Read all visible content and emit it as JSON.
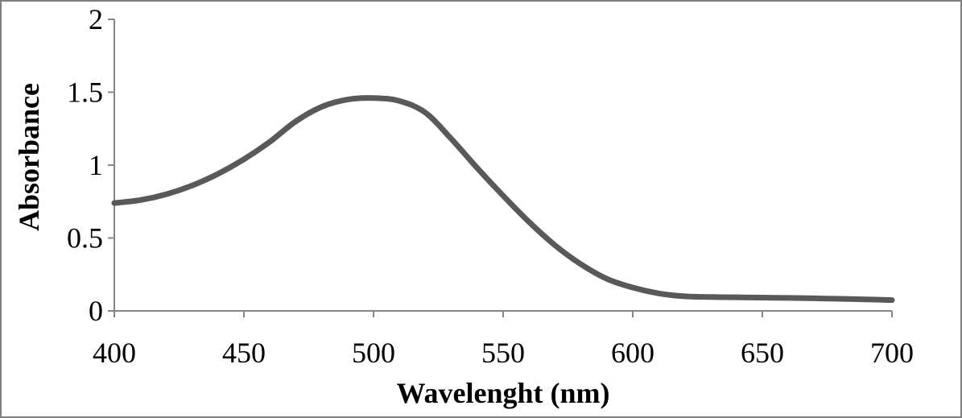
{
  "chart_data": {
    "type": "line",
    "title": "",
    "xlabel": "Wavelenght (nm)",
    "ylabel": "Absorbance",
    "xlim": [
      400,
      700
    ],
    "ylim": [
      0,
      2
    ],
    "xticks": [
      400,
      450,
      500,
      550,
      600,
      650,
      700
    ],
    "yticks": [
      0,
      0.5,
      1,
      1.5,
      2
    ],
    "xtick_labels": [
      "400",
      "450",
      "500",
      "550",
      "600",
      "650",
      "700"
    ],
    "ytick_labels": [
      "0",
      "0.5",
      "1",
      "1.5",
      "2"
    ],
    "grid": false,
    "legend": "none",
    "line_color": "#595959",
    "axis_color": "#868686",
    "series": [
      {
        "name": "Absorbance",
        "x": [
          400,
          410,
          420,
          430,
          440,
          450,
          460,
          470,
          480,
          490,
          500,
          510,
          520,
          530,
          540,
          550,
          560,
          570,
          580,
          590,
          600,
          610,
          620,
          630,
          640,
          650,
          660,
          670,
          680,
          690,
          700
        ],
        "values": [
          0.74,
          0.76,
          0.8,
          0.86,
          0.94,
          1.04,
          1.16,
          1.3,
          1.4,
          1.45,
          1.46,
          1.44,
          1.36,
          1.18,
          0.98,
          0.79,
          0.61,
          0.45,
          0.32,
          0.22,
          0.16,
          0.12,
          0.1,
          0.095,
          0.093,
          0.091,
          0.089,
          0.086,
          0.083,
          0.079,
          0.074
        ]
      }
    ]
  }
}
